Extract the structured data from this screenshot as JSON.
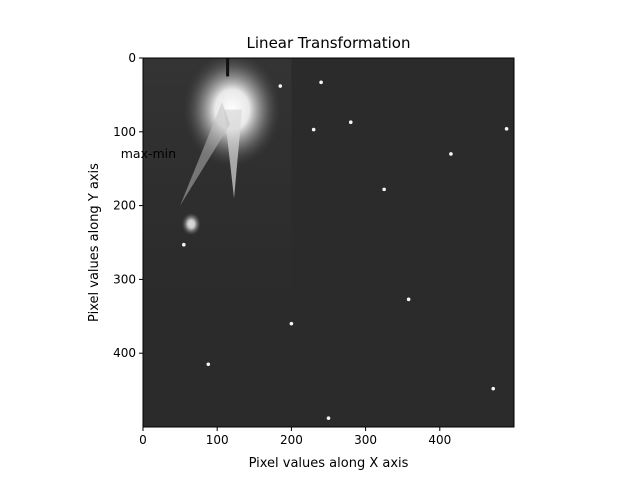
{
  "chart_data": {
    "type": "heatmap",
    "title": "Linear Transformation",
    "xlabel": "Pixel values along X axis",
    "ylabel": "Pixel values along Y axis",
    "xlim": [
      0,
      500
    ],
    "ylim": [
      500,
      0
    ],
    "xticks": [
      0,
      100,
      200,
      300,
      400
    ],
    "yticks": [
      0,
      100,
      200,
      300,
      400
    ],
    "colormap": "gray",
    "background_level": "#2b2b2b",
    "annotation": {
      "text": "max-min",
      "x": -30,
      "y": 130
    },
    "bright_regions": [
      {
        "x": 120,
        "y": 70,
        "intensity": 1.0,
        "spread": 30
      },
      {
        "x": 65,
        "y": 225,
        "intensity": 0.85,
        "spread": 6
      }
    ],
    "bright_spots": [
      {
        "x": 230,
        "y": 97
      },
      {
        "x": 185,
        "y": 38
      },
      {
        "x": 240,
        "y": 33
      },
      {
        "x": 280,
        "y": 87
      },
      {
        "x": 325,
        "y": 178
      },
      {
        "x": 358,
        "y": 327
      },
      {
        "x": 200,
        "y": 360
      },
      {
        "x": 88,
        "y": 415
      },
      {
        "x": 472,
        "y": 448
      },
      {
        "x": 250,
        "y": 488
      },
      {
        "x": 490,
        "y": 96
      },
      {
        "x": 415,
        "y": 130
      },
      {
        "x": 55,
        "y": 253
      }
    ]
  }
}
